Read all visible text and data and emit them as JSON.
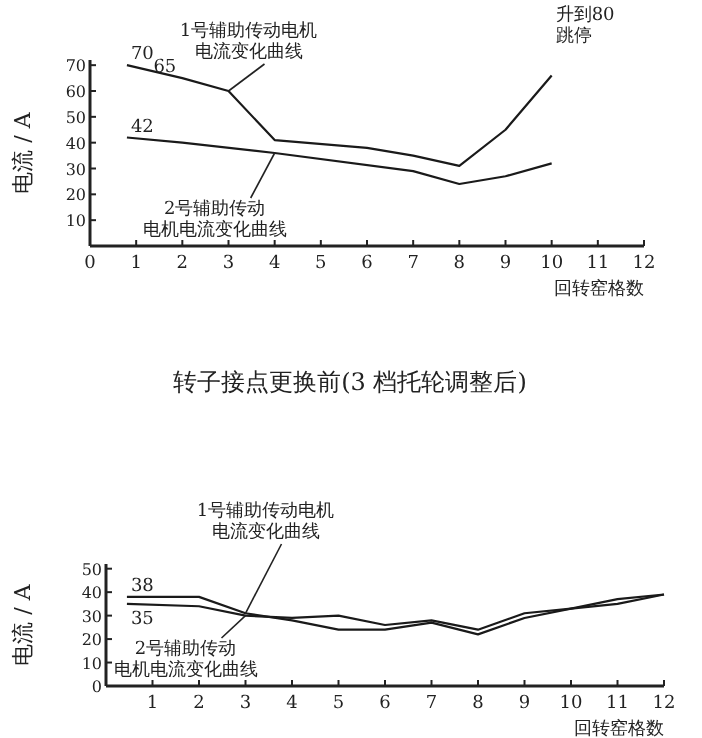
{
  "chart_data": [
    {
      "type": "line",
      "title": "转子接点更换前(3 档托轮调整后)",
      "xlabel": "回转窑格数",
      "ylabel": "电流 / A",
      "xlim": [
        0,
        12
      ],
      "xticks": [
        0,
        1,
        2,
        3,
        4,
        5,
        6,
        7,
        8,
        9,
        10,
        11,
        12
      ],
      "ylim": [
        0,
        72
      ],
      "yticks": [
        10,
        20,
        30,
        40,
        50,
        60,
        70
      ],
      "series": [
        {
          "name": "1号辅助传动电机电流变化曲线",
          "color": "#1a1a1a",
          "x": [
            0.8,
            2,
            3,
            4,
            6,
            7,
            8,
            9,
            10
          ],
          "values": [
            70,
            65,
            60,
            41,
            38,
            35,
            31,
            45,
            66
          ],
          "value_labels": [
            "70",
            "65",
            null,
            null,
            null,
            null,
            null,
            null,
            null
          ]
        },
        {
          "name": "2号辅助传动电机电流变化曲线",
          "color": "#1a1a1a",
          "x": [
            0.8,
            2,
            4,
            7,
            8,
            9,
            10
          ],
          "values": [
            42,
            40,
            36,
            29,
            24,
            27,
            32
          ],
          "value_labels": [
            "42",
            null,
            null,
            null,
            null,
            null,
            null
          ]
        }
      ],
      "annotations": [
        {
          "text": "升到80\n跳停",
          "x": 10,
          "y": 66
        }
      ]
    },
    {
      "type": "line",
      "xlabel": "回转窑格数",
      "ylabel": "电流 / A",
      "xlim": [
        0,
        12
      ],
      "xticks": [
        1,
        2,
        3,
        4,
        5,
        6,
        7,
        8,
        9,
        10,
        11,
        12
      ],
      "ylim": [
        0,
        52
      ],
      "yticks": [
        0,
        10,
        20,
        30,
        40,
        50
      ],
      "series": [
        {
          "name": "1号辅助传动电机电流变化曲线",
          "color": "#1a1a1a",
          "x": [
            0.45,
            2,
            3,
            4,
            5,
            6,
            7,
            8,
            9,
            10,
            11,
            12
          ],
          "values": [
            38,
            38,
            31,
            28,
            24,
            24,
            27,
            22,
            29,
            33,
            37,
            39
          ],
          "value_labels": [
            "38",
            null,
            null,
            null,
            null,
            null,
            null,
            null,
            null,
            null,
            null,
            null
          ]
        },
        {
          "name": "2号辅助传动电机电流变化曲线",
          "color": "#1a1a1a",
          "x": [
            0.45,
            2,
            3,
            4,
            5,
            6,
            7,
            8,
            9,
            10,
            11,
            12
          ],
          "values": [
            35,
            34,
            30,
            29,
            30,
            26,
            28,
            24,
            31,
            33,
            35,
            39
          ],
          "value_labels": [
            "35",
            null,
            null,
            null,
            null,
            null,
            null,
            null,
            null,
            null,
            null,
            null
          ]
        }
      ]
    }
  ]
}
